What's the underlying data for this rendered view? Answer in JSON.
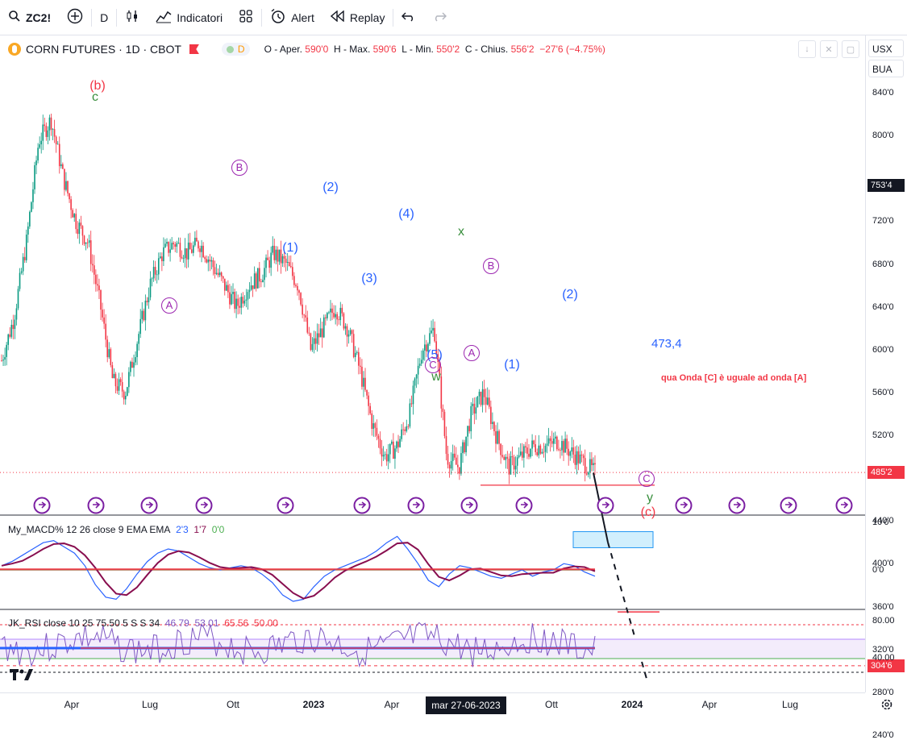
{
  "toolbar": {
    "symbol": "ZC2!",
    "interval": "D",
    "indicators_label": "Indicatori",
    "alert_label": "Alert",
    "replay_label": "Replay"
  },
  "symbol_bar": {
    "name": "CORN FUTURES · 1D · CBOT",
    "badge": "D",
    "o_label": "O - Aper.",
    "o_value": "590'0",
    "h_label": "H - Max.",
    "h_value": "590'6",
    "l_label": "L - Min.",
    "l_value": "550'2",
    "c_label": "C - Chius.",
    "c_value": "556'2",
    "change": "−27'6 (−4.75%)"
  },
  "axis_controls": {
    "currency": "USX",
    "unit": "BUA"
  },
  "price_axis": {
    "ticks": [
      "840'0",
      "800'0",
      "720'0",
      "680'0",
      "640'0",
      "600'0",
      "560'0",
      "520'0",
      "440'0",
      "400'0",
      "360'0",
      "320'0",
      "280'0",
      "240'0"
    ],
    "tags": [
      {
        "text": "753'4",
        "value": 753.5,
        "color": "#131722"
      },
      {
        "text": "485'2",
        "value": 485.25,
        "color": "#f23645"
      },
      {
        "text": "304'6",
        "value": 304.75,
        "color": "#f23645"
      }
    ]
  },
  "macd_axis": {
    "ticks": [
      "10'0",
      "0'0"
    ]
  },
  "rsi_axis": {
    "ticks": [
      "80.00",
      "40.00"
    ]
  },
  "time_axis": {
    "labels": [
      "Apr",
      "Lug",
      "Ott",
      "2023",
      "Apr",
      "Ott",
      "2024",
      "Apr",
      "Lug"
    ],
    "cursor_label": "mar 27-06-2023"
  },
  "indicators": {
    "macd": {
      "name": "My_MACD% 12 26 close 9 EMA EMA",
      "v1": "2'3",
      "v2": "1'7",
      "v3": "0'0"
    },
    "rsi": {
      "name": "JK_RSI close 10 25 75.50 5 S S 34",
      "v1": "46.79",
      "v2": "53.01",
      "v3": "65.56",
      "v4": "50.00"
    }
  },
  "annotations": {
    "level_label": "473,4",
    "target_note": "qua Onda [C] è uguale ad onda [A]"
  },
  "wave_labels": [
    {
      "text": "(b)",
      "color": "#f23645"
    },
    {
      "text": "c",
      "color": "#388e3c"
    },
    {
      "text": "A",
      "color": "#9c27b0",
      "circled": true
    },
    {
      "text": "B",
      "color": "#9c27b0",
      "circled": true
    },
    {
      "text": "(1)",
      "color": "#2962ff"
    },
    {
      "text": "(2)",
      "color": "#2962ff"
    },
    {
      "text": "(3)",
      "color": "#2962ff"
    },
    {
      "text": "(4)",
      "color": "#2962ff"
    },
    {
      "text": "(5)",
      "color": "#2962ff"
    },
    {
      "text": "C",
      "color": "#9c27b0",
      "circled": true
    },
    {
      "text": "w",
      "color": "#388e3c"
    },
    {
      "text": "x",
      "color": "#388e3c"
    },
    {
      "text": "A",
      "color": "#9c27b0",
      "circled": true
    },
    {
      "text": "B",
      "color": "#9c27b0",
      "circled": true
    },
    {
      "text": "(1)",
      "color": "#2962ff"
    },
    {
      "text": "(2)",
      "color": "#2962ff"
    },
    {
      "text": "C",
      "color": "#9c27b0",
      "circled": true
    },
    {
      "text": "y",
      "color": "#388e3c"
    },
    {
      "text": "(c)",
      "color": "#f23645"
    }
  ],
  "chart_data": {
    "type": "line",
    "subtype": "candlestick",
    "grid": false,
    "y_range": [
      240,
      860
    ],
    "series": [
      {
        "values": [
          590,
          630,
          700,
          795,
          815,
          760,
          720,
          700,
          640,
          570,
          560,
          610,
          660,
          690,
          700,
          690,
          700,
          680,
          660,
          640,
          660,
          670,
          690,
          680,
          660,
          600,
          620,
          640,
          620,
          580,
          530,
          500,
          510,
          540,
          600,
          620,
          500,
          490,
          540,
          560,
          520,
          490,
          500,
          510,
          510,
          515,
          505,
          495,
          485
        ]
      }
    ],
    "levels": [
      {
        "value": 473.4,
        "label": "473,4"
      },
      {
        "value": 304.75,
        "style": "dashed"
      }
    ],
    "projection": [
      485,
      420,
      355,
      290
    ],
    "target_zone": [
      415,
      430
    ]
  },
  "colors": {
    "up": "#089981",
    "down": "#f23645",
    "grid_line": "#f23645",
    "macd_line": "#2962ff",
    "signal_line": "#880e4f",
    "rsi_line": "#7e57c2",
    "rsi_bg": "#f3ecfb"
  }
}
